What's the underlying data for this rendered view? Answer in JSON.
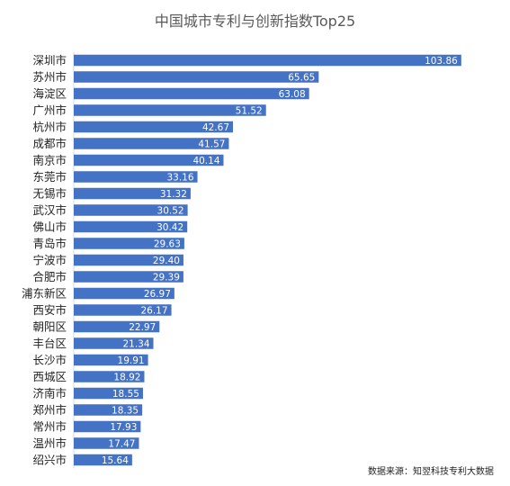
{
  "chart_data": {
    "type": "bar",
    "orientation": "horizontal",
    "title": "中国城市专利与创新指数Top25",
    "xlabel": "",
    "ylabel": "",
    "xlim": [
      0,
      108
    ],
    "grid": false,
    "legend": "none",
    "bar_color": "#4472C4",
    "label_color": "#ffffff",
    "categories": [
      "深圳市",
      "苏州市",
      "海淀区",
      "广州市",
      "杭州市",
      "成都市",
      "南京市",
      "东莞市",
      "无锡市",
      "武汉市",
      "佛山市",
      "青岛市",
      "宁波市",
      "合肥市",
      "浦东新区",
      "西安市",
      "朝阳区",
      "丰台区",
      "长沙市",
      "西城区",
      "济南市",
      "郑州市",
      "常州市",
      "温州市",
      "绍兴市"
    ],
    "values": [
      103.86,
      65.65,
      63.08,
      51.52,
      42.67,
      41.57,
      40.14,
      33.16,
      31.32,
      30.52,
      30.42,
      29.63,
      29.4,
      29.39,
      26.97,
      26.17,
      22.97,
      21.34,
      19.91,
      18.92,
      18.55,
      18.35,
      17.93,
      17.47,
      15.64
    ],
    "value_labels": [
      "103.86",
      "65.65",
      "63.08",
      "51.52",
      "42.67",
      "41.57",
      "40.14",
      "33.16",
      "31.32",
      "30.52",
      "30.42",
      "29.63",
      "29.40",
      "29.39",
      "26.97",
      "26.17",
      "22.97",
      "21.34",
      "19.91",
      "18.92",
      "18.55",
      "18.35",
      "17.93",
      "17.47",
      "15.64"
    ],
    "source_note": "数据来源：知翌科技专利大数据"
  }
}
